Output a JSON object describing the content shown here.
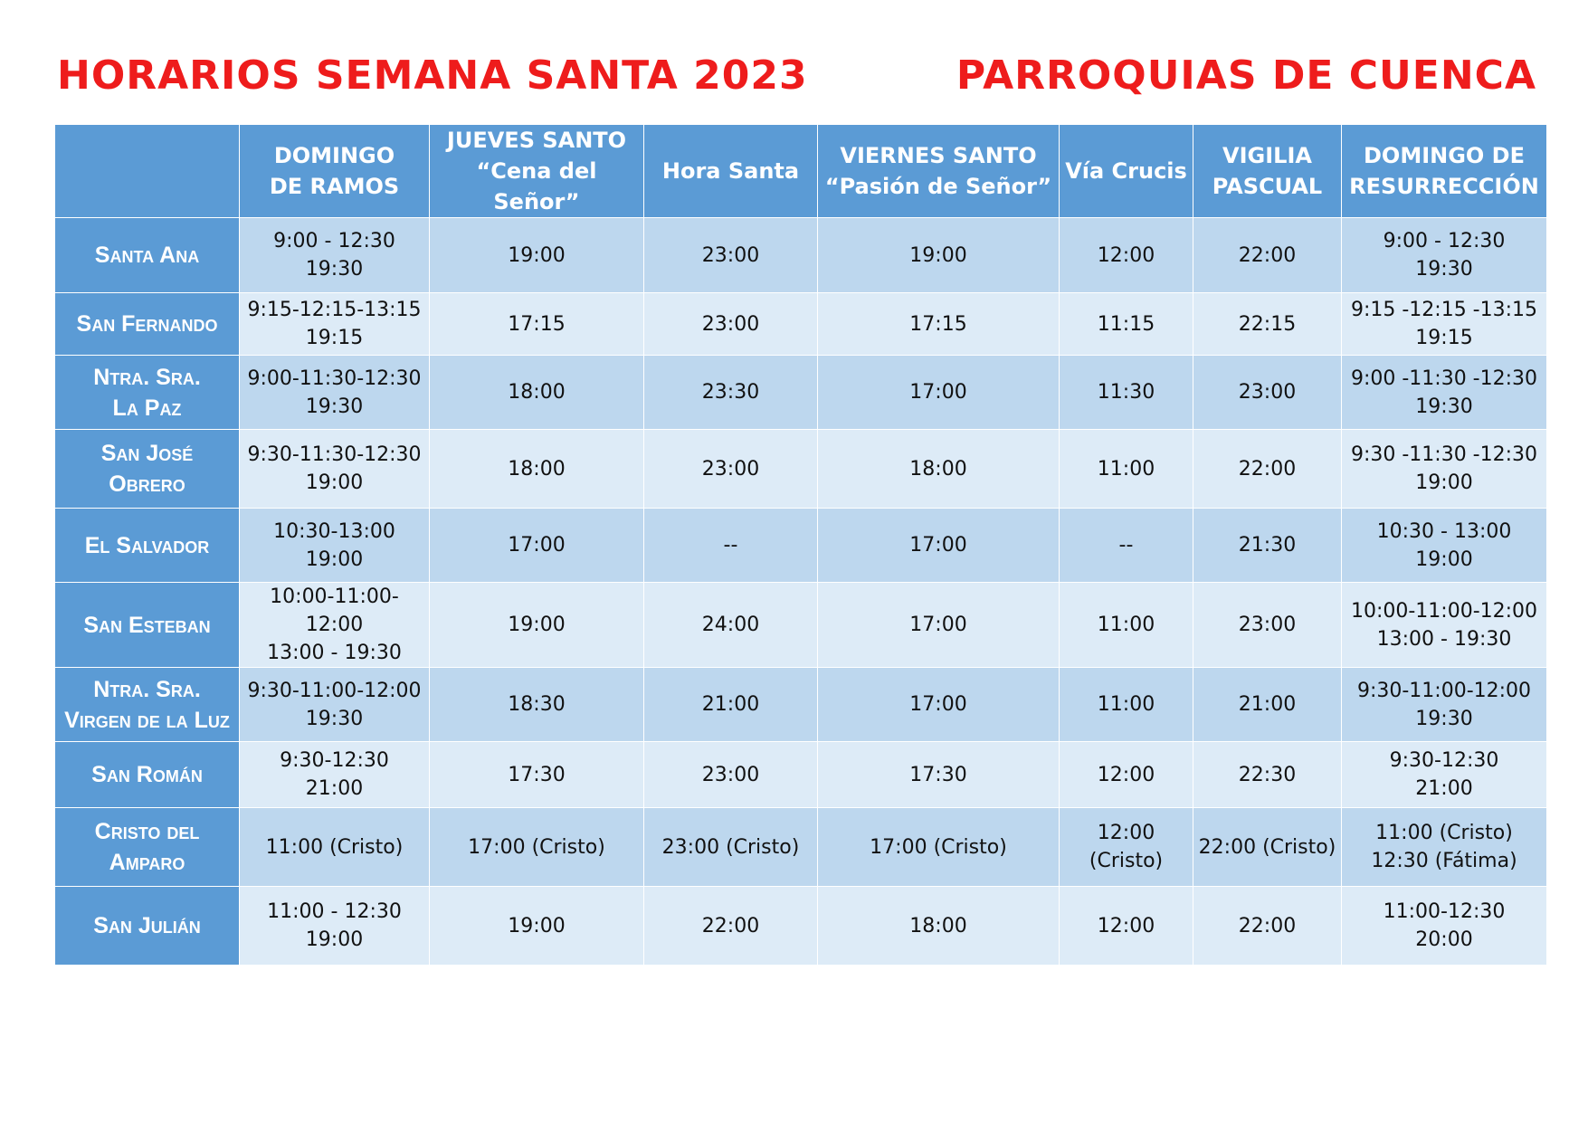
{
  "title_left": "HORARIOS SEMANA SANTA 2023",
  "title_right": "PARROQUIAS DE CUENCA",
  "columns": [
    {
      "line1": "DOMINGO",
      "line2": "DE RAMOS"
    },
    {
      "line1": "JUEVES SANTO",
      "line2": "“Cena del Señor”"
    },
    {
      "line1": "Hora Santa",
      "line2": ""
    },
    {
      "line1": "VIERNES SANTO",
      "line2": "“Pasión de Señor”"
    },
    {
      "line1": "Vía Crucis",
      "line2": ""
    },
    {
      "line1": "VIGILIA",
      "line2": "PASCUAL"
    },
    {
      "line1": "DOMINGO DE",
      "line2": "RESURRECCIÓN"
    }
  ],
  "rows": [
    {
      "name1": "Santa Ana",
      "name2": "",
      "cells": [
        [
          "9:00 - 12:30",
          "19:30"
        ],
        [
          "19:00",
          ""
        ],
        [
          "23:00",
          ""
        ],
        [
          "19:00",
          ""
        ],
        [
          "12:00",
          ""
        ],
        [
          "22:00",
          ""
        ],
        [
          "9:00 - 12:30",
          "19:30"
        ]
      ]
    },
    {
      "name1": "San Fernando",
      "name2": "",
      "cells": [
        [
          "9:15-12:15-13:15",
          "19:15"
        ],
        [
          "17:15",
          ""
        ],
        [
          "23:00",
          ""
        ],
        [
          "17:15",
          ""
        ],
        [
          "11:15",
          ""
        ],
        [
          "22:15",
          ""
        ],
        [
          "9:15 -12:15 -13:15",
          "19:15"
        ]
      ]
    },
    {
      "name1": "Ntra. Sra.",
      "name2": "La Paz",
      "cells": [
        [
          "9:00-11:30-12:30",
          "19:30"
        ],
        [
          "18:00",
          ""
        ],
        [
          "23:30",
          ""
        ],
        [
          "17:00",
          ""
        ],
        [
          "11:30",
          ""
        ],
        [
          "23:00",
          ""
        ],
        [
          "9:00 -11:30 -12:30",
          "19:30"
        ]
      ]
    },
    {
      "name1": "San José",
      "name2": "Obrero",
      "cells": [
        [
          "9:30-11:30-12:30",
          "19:00"
        ],
        [
          "18:00",
          ""
        ],
        [
          "23:00",
          ""
        ],
        [
          "18:00",
          ""
        ],
        [
          "11:00",
          ""
        ],
        [
          "22:00",
          ""
        ],
        [
          "9:30 -11:30 -12:30",
          "19:00"
        ]
      ]
    },
    {
      "name1": "El Salvador",
      "name2": "",
      "cells": [
        [
          "10:30-13:00",
          "19:00"
        ],
        [
          "17:00",
          ""
        ],
        [
          "--",
          ""
        ],
        [
          "17:00",
          ""
        ],
        [
          "--",
          ""
        ],
        [
          "21:30",
          ""
        ],
        [
          "10:30 - 13:00",
          "19:00"
        ]
      ]
    },
    {
      "name1": "San Esteban",
      "name2": "",
      "cells": [
        [
          "10:00-11:00-12:00",
          "13:00 - 19:30"
        ],
        [
          "19:00",
          ""
        ],
        [
          "24:00",
          ""
        ],
        [
          "17:00",
          ""
        ],
        [
          "11:00",
          ""
        ],
        [
          "23:00",
          ""
        ],
        [
          "10:00-11:00-12:00",
          "13:00 - 19:30"
        ]
      ]
    },
    {
      "name1": "Ntra. Sra.",
      "name2": "Virgen de la Luz",
      "cells": [
        [
          "9:30-11:00-12:00",
          "19:30"
        ],
        [
          "18:30",
          ""
        ],
        [
          "21:00",
          ""
        ],
        [
          "17:00",
          ""
        ],
        [
          "11:00",
          ""
        ],
        [
          "21:00",
          ""
        ],
        [
          "9:30-11:00-12:00",
          "19:30"
        ]
      ]
    },
    {
      "name1": "San Román",
      "name2": "",
      "cells": [
        [
          "9:30-12:30",
          "21:00"
        ],
        [
          "17:30",
          ""
        ],
        [
          "23:00",
          ""
        ],
        [
          "17:30",
          ""
        ],
        [
          "12:00",
          ""
        ],
        [
          "22:30",
          ""
        ],
        [
          "9:30-12:30",
          "21:00"
        ]
      ]
    },
    {
      "name1": "Cristo del",
      "name2": "Amparo",
      "cells": [
        [
          "11:00 (Cristo)",
          ""
        ],
        [
          "17:00 (Cristo)",
          ""
        ],
        [
          "23:00 (Cristo)",
          ""
        ],
        [
          "17:00 (Cristo)",
          ""
        ],
        [
          "12:00",
          "(Cristo)"
        ],
        [
          "22:00 (Cristo)",
          ""
        ],
        [
          "11:00 (Cristo)",
          "12:30 (Fátima)"
        ]
      ]
    },
    {
      "name1": "San Julián",
      "name2": "",
      "cells": [
        [
          "11:00 - 12:30",
          "19:00"
        ],
        [
          "19:00",
          ""
        ],
        [
          "22:00",
          ""
        ],
        [
          "18:00",
          ""
        ],
        [
          "12:00",
          ""
        ],
        [
          "22:00",
          ""
        ],
        [
          "11:00-12:30",
          "20:00"
        ]
      ]
    }
  ]
}
